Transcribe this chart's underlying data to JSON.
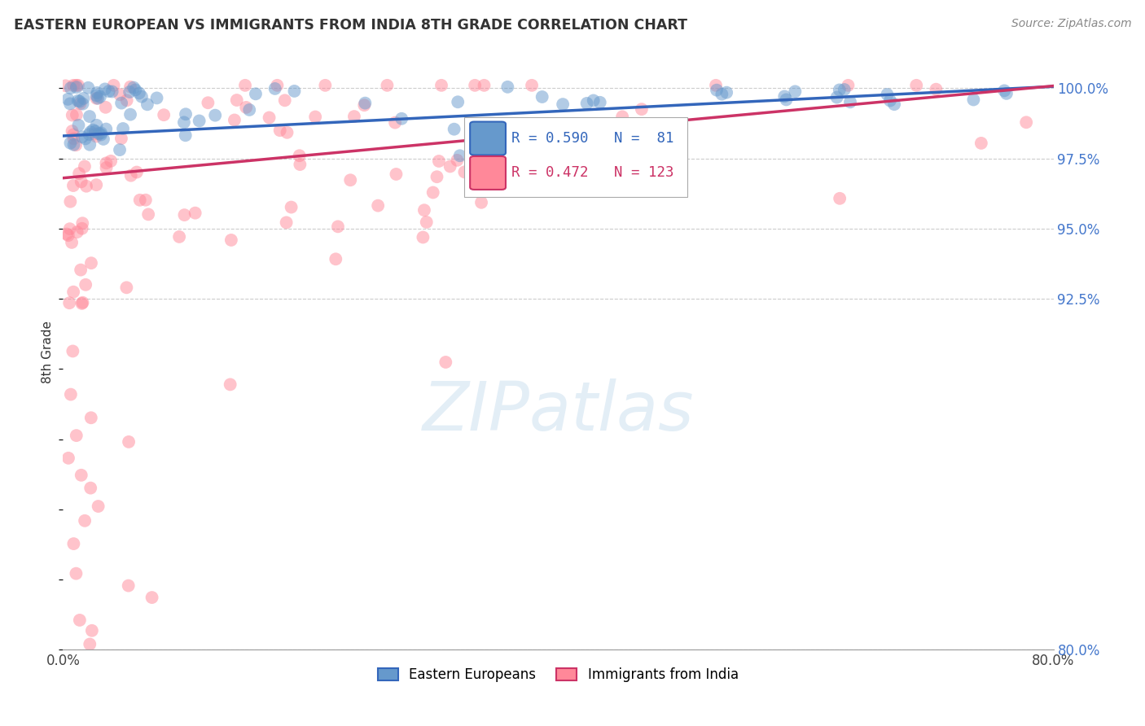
{
  "title": "EASTERN EUROPEAN VS IMMIGRANTS FROM INDIA 8TH GRADE CORRELATION CHART",
  "source": "Source: ZipAtlas.com",
  "ylabel": "8th Grade",
  "xmin": 0.0,
  "xmax": 80.0,
  "ymin": 80.0,
  "ymax": 101.2,
  "yticks": [
    80.0,
    92.5,
    95.0,
    97.5,
    100.0
  ],
  "ytick_labels": [
    "80.0%",
    "92.5%",
    "95.0%",
    "97.5%",
    "100.0%"
  ],
  "blue_R": 0.59,
  "blue_N": 81,
  "pink_R": 0.472,
  "pink_N": 123,
  "blue_color": "#6699cc",
  "pink_color": "#ff8899",
  "blue_line_color": "#3366bb",
  "pink_line_color": "#cc3366",
  "legend_label_blue": "Eastern Europeans",
  "legend_label_pink": "Immigrants from India",
  "watermark_text": "ZIPatlas",
  "blue_intercept": 98.3,
  "blue_slope": 0.022,
  "pink_intercept": 96.8,
  "pink_slope": 0.041
}
